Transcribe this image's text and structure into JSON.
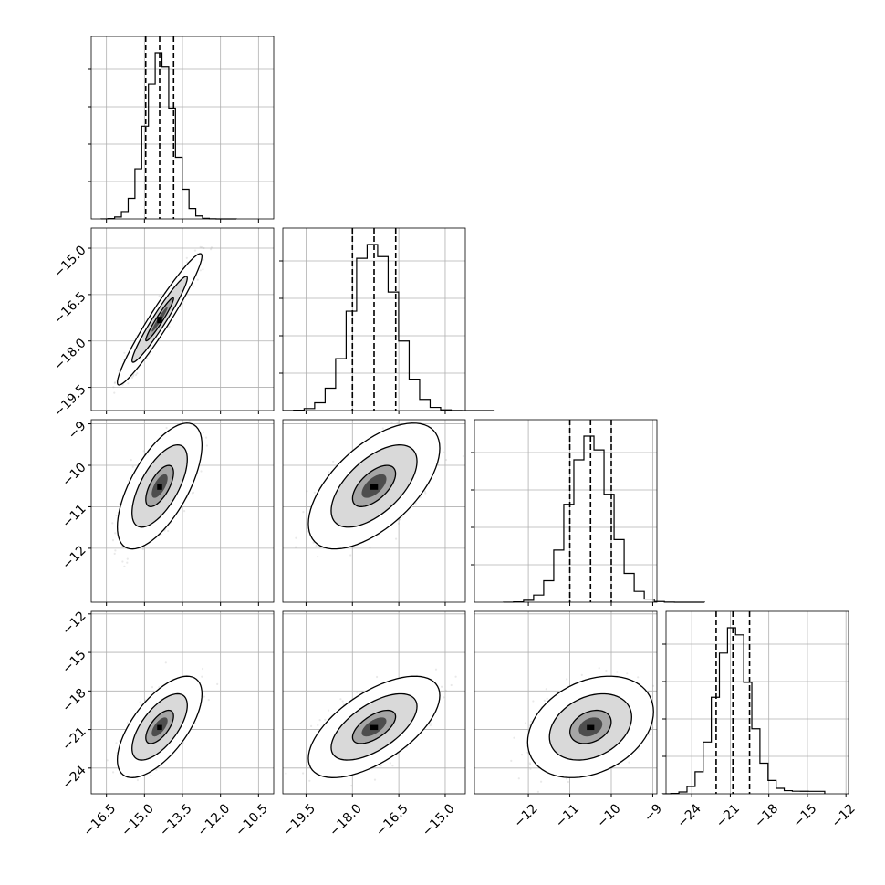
{
  "chart_data": {
    "type": "corner",
    "parameters": 4,
    "grid": true,
    "quantiles_shown": [
      0.16,
      0.5,
      0.84
    ],
    "levels": [
      0.39,
      0.86,
      0.99
    ],
    "colors": {
      "line": "#000000",
      "grid": "#b0b0b0",
      "points": "#999999"
    },
    "axes": [
      {
        "range": [
          -17.1,
          -9.9
        ],
        "ticks": [
          -16.5,
          -15.0,
          -13.5,
          -12.0,
          -10.5
        ],
        "tick_labels": [
          "−16.5",
          "−15.0",
          "−13.5",
          "−12.0",
          "−10.5"
        ]
      },
      {
        "range": [
          -20.25,
          -14.35
        ],
        "ticks": [
          -19.5,
          -18.0,
          -16.5,
          -15.0
        ],
        "tick_labels": [
          "−19.5",
          "−18.0",
          "−16.5",
          "−15.0"
        ]
      },
      {
        "range": [
          -13.3,
          -8.9
        ],
        "ticks": [
          -12,
          -11,
          -10,
          -9
        ],
        "tick_labels": [
          "−12",
          "−11",
          "−10",
          "−9"
        ]
      },
      {
        "range": [
          -26.0,
          -11.8
        ],
        "ticks": [
          -24,
          -21,
          -18,
          -15,
          -12
        ],
        "tick_labels": [
          "−24",
          "−21",
          "−18",
          "−15",
          "−12"
        ]
      }
    ],
    "marginals": [
      {
        "mean": -14.4,
        "std": 0.55,
        "q16": -14.95,
        "q50": -14.4,
        "q84": -13.85
      },
      {
        "mean": -17.3,
        "std": 0.7,
        "q16": -18.0,
        "q50": -17.3,
        "q84": -16.6
      },
      {
        "mean": -10.5,
        "std": 0.5,
        "q16": -11.0,
        "q50": -10.5,
        "q84": -10.0
      },
      {
        "mean": -20.8,
        "std": 1.3,
        "q16": -22.1,
        "q50": -20.8,
        "q84": -19.5
      }
    ],
    "correlations": [
      {
        "pair": [
          1,
          0
        ],
        "rho": 0.96
      },
      {
        "pair": [
          2,
          0
        ],
        "rho": 0.65
      },
      {
        "pair": [
          2,
          1
        ],
        "rho": 0.6
      },
      {
        "pair": [
          3,
          0
        ],
        "rho": 0.65
      },
      {
        "pair": [
          3,
          1
        ],
        "rho": 0.62
      },
      {
        "pair": [
          3,
          2
        ],
        "rho": 0.3
      }
    ]
  }
}
